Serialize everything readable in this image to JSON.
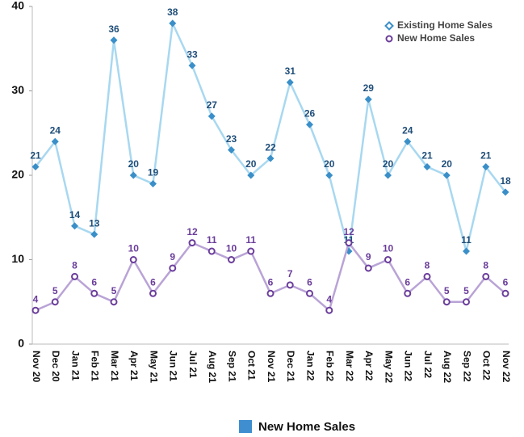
{
  "chart_data": {
    "type": "line",
    "categories": [
      "Nov 20",
      "Dec 20",
      "Jan 21",
      "Feb 21",
      "Mar 21",
      "Apr 21",
      "May 21",
      "Jun 21",
      "Jul 21",
      "Aug 21",
      "Sep 21",
      "Oct 21",
      "Nov 21",
      "Dec 21",
      "Jan 22",
      "Feb 22",
      "Mar 22",
      "Apr 22",
      "May 22",
      "Jun 22",
      "Jul 22",
      "Aug 22",
      "Sep 22",
      "Oct 22",
      "Nov 22"
    ],
    "series": [
      {
        "name": "Existing Home Sales",
        "color": "#3a8fc8",
        "line_color": "#a8d8f0",
        "label_color": "#1f4e79",
        "marker": "diamond",
        "values": [
          21,
          24,
          14,
          13,
          36,
          20,
          19,
          38,
          33,
          27,
          23,
          20,
          22,
          31,
          26,
          20,
          11,
          29,
          20,
          24,
          21,
          20,
          11,
          21,
          18
        ]
      },
      {
        "name": "New Home Sales",
        "color": "#6a3d9a",
        "line_color": "#b9a3d6",
        "label_color": "#6a3d9a",
        "marker": "circle",
        "values": [
          4,
          5,
          8,
          6,
          5,
          10,
          6,
          9,
          12,
          11,
          10,
          11,
          6,
          7,
          6,
          4,
          12,
          9,
          10,
          6,
          8,
          5,
          5,
          8,
          6
        ]
      }
    ],
    "ylim": [
      0,
      40
    ],
    "yticks": [
      0,
      10,
      20,
      30,
      40
    ],
    "legend": "top-right",
    "bottom_legend": {
      "label": "New Home Sales",
      "color": "#3f8fd0"
    }
  }
}
